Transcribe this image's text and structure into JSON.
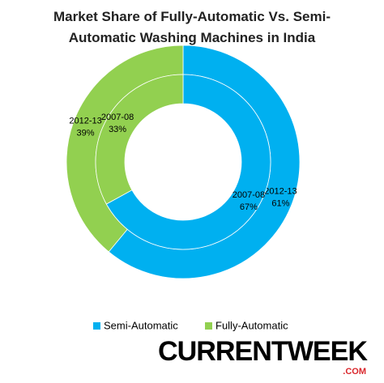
{
  "chart_data": {
    "type": "nested-donut",
    "title": "Market Share of Fully-Automatic Vs. Semi-Automatic Washing Machines in India",
    "categories": [
      "Semi-Automatic",
      "Fully-Automatic"
    ],
    "colors": [
      "#00b0f0",
      "#92d050"
    ],
    "series": [
      {
        "name": "2012-13",
        "values": [
          61,
          39
        ],
        "value_labels": [
          "61%",
          "39%"
        ]
      },
      {
        "name": "2007-08",
        "values": [
          67,
          33
        ],
        "value_labels": [
          "67%",
          "33%"
        ]
      }
    ],
    "legend": "bottom"
  },
  "logo": {
    "text": "CURRENTWEEK",
    "domain": ".COM"
  }
}
